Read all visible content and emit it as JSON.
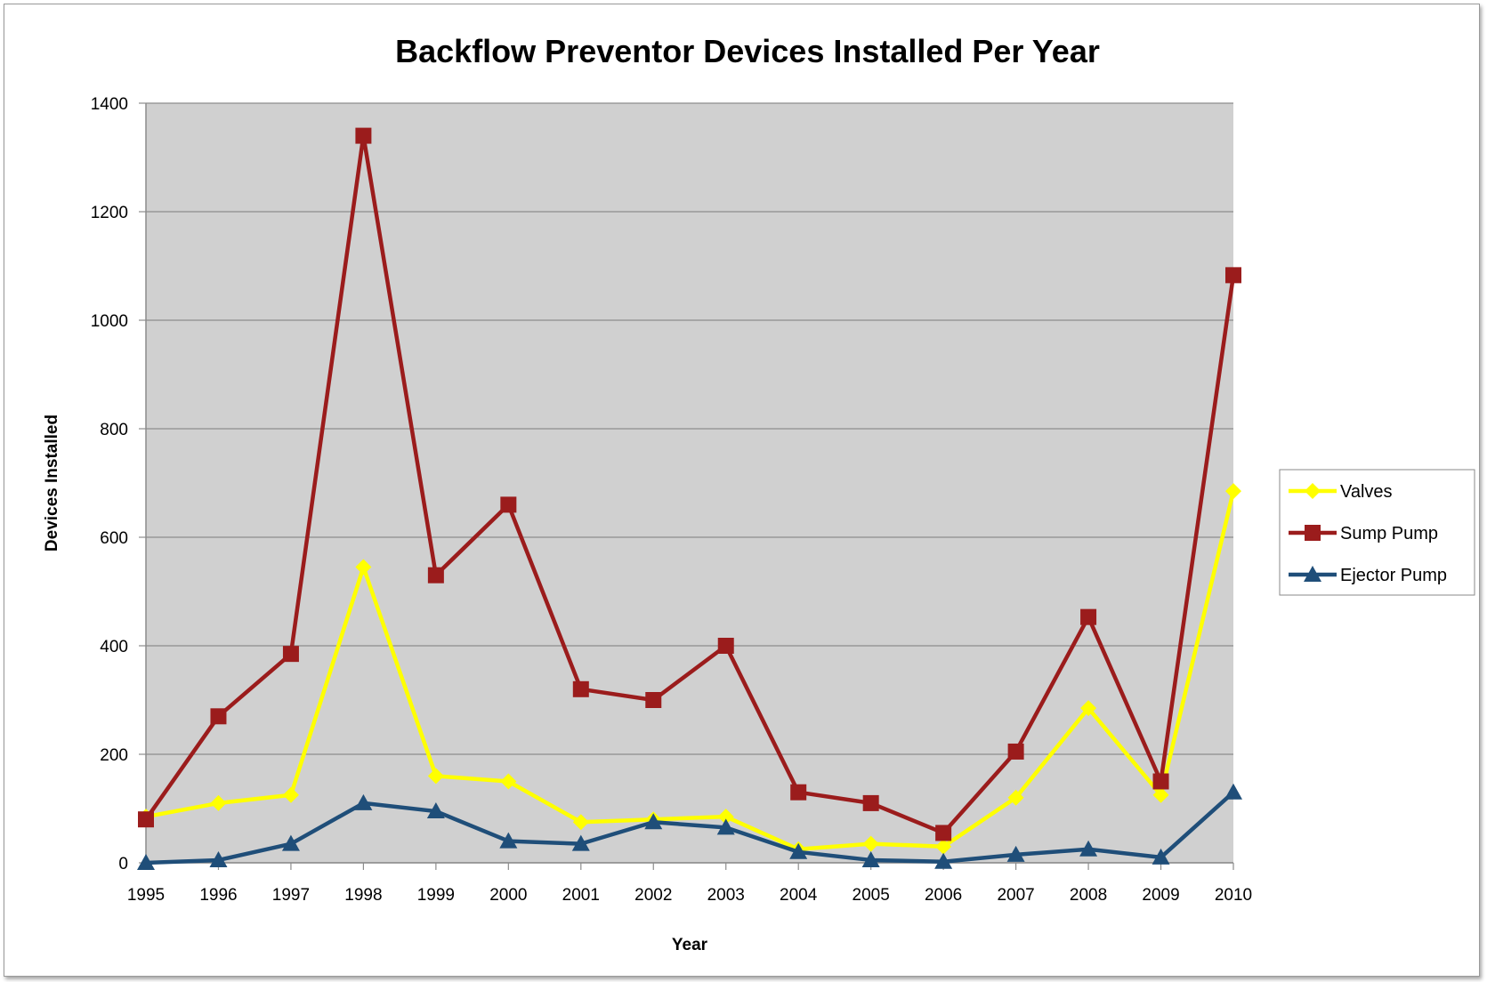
{
  "chart_data": {
    "type": "line",
    "title": "Backflow Preventor Devices Installed Per Year",
    "xlabel": "Year",
    "ylabel": "Devices Installed",
    "categories": [
      "1995",
      "1996",
      "1997",
      "1998",
      "1999",
      "2000",
      "2001",
      "2002",
      "2003",
      "2004",
      "2005",
      "2006",
      "2007",
      "2008",
      "2009",
      "2010"
    ],
    "ylim": [
      0,
      1400
    ],
    "yticks": [
      0,
      200,
      400,
      600,
      800,
      1000,
      1200,
      1400
    ],
    "grid": true,
    "legend_position": "right",
    "series": [
      {
        "name": "Valves",
        "color": "#ffff00",
        "marker": "diamond",
        "values": [
          85,
          110,
          125,
          545,
          160,
          150,
          75,
          80,
          85,
          25,
          35,
          30,
          120,
          285,
          125,
          685
        ]
      },
      {
        "name": "Sump Pump",
        "color": "#9b1c1c",
        "marker": "square",
        "values": [
          80,
          270,
          385,
          1340,
          530,
          660,
          320,
          300,
          400,
          130,
          110,
          55,
          205,
          453,
          150,
          1083
        ]
      },
      {
        "name": "Ejector Pump",
        "color": "#1f4e79",
        "marker": "triangle",
        "values": [
          0,
          5,
          35,
          110,
          95,
          40,
          35,
          75,
          65,
          20,
          5,
          2,
          15,
          25,
          10,
          130
        ]
      }
    ]
  }
}
